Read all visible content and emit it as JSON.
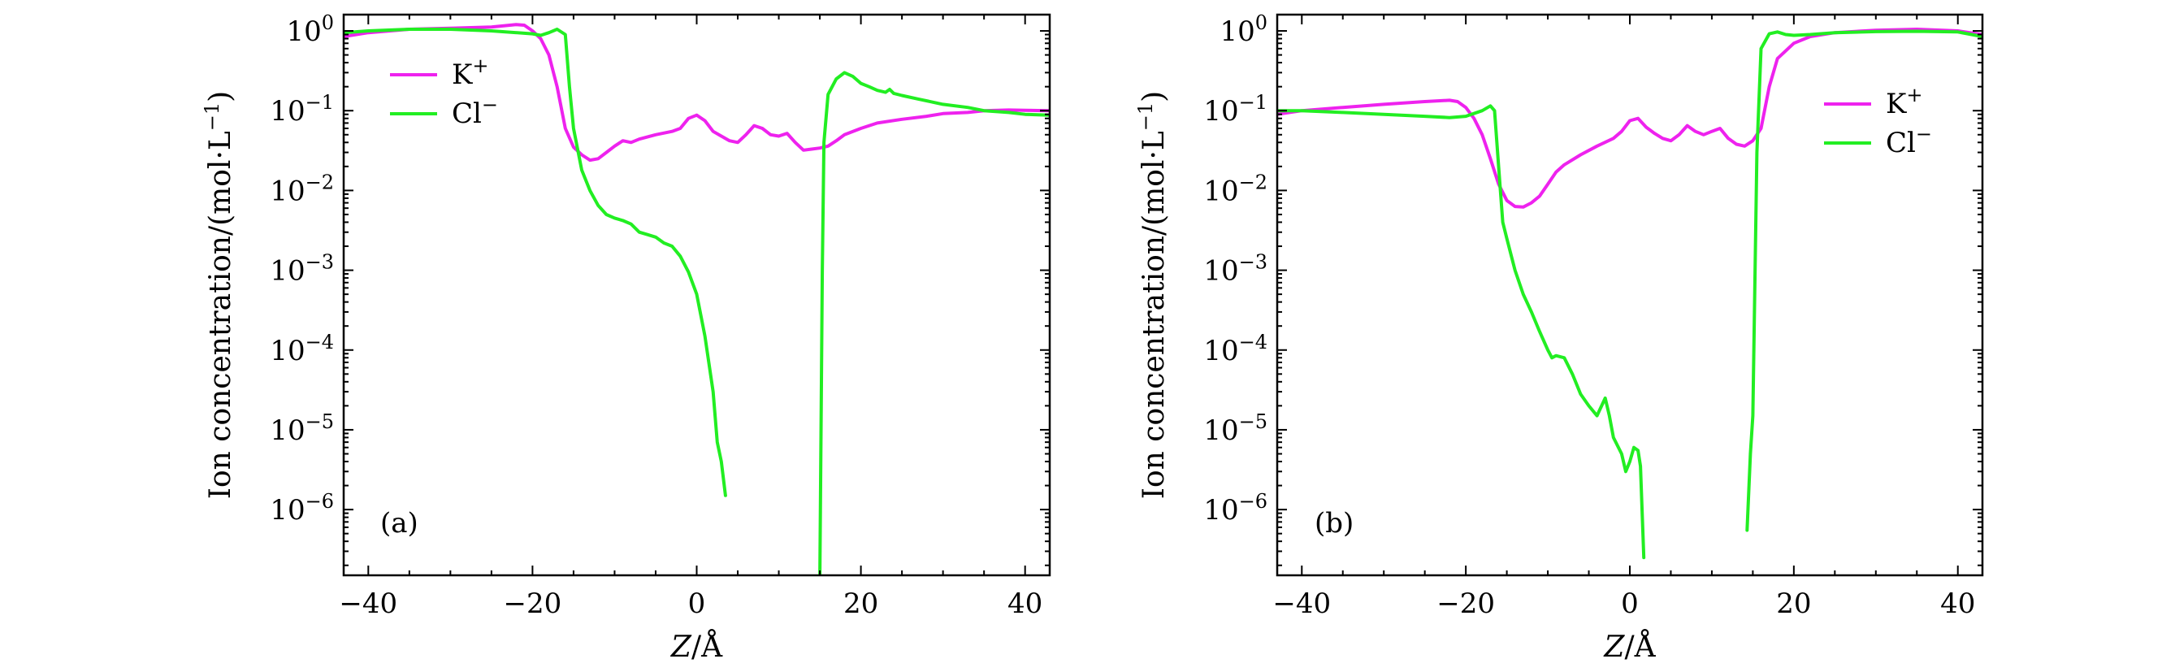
{
  "colors": {
    "k_plus": "#ee22ee",
    "cl_minus": "#22ee22"
  },
  "chart_data": [
    {
      "type": "line",
      "panel_label": "(a)",
      "xlabel_var": "Z",
      "xlabel_unit": "/Å",
      "ylabel": "Ion concentration/(mol·L",
      "ylabel_exp": "−1",
      "ylabel_close": ")",
      "xlim": [
        -43,
        43
      ],
      "ylim": [
        1.5e-07,
        1.6
      ],
      "yscale": "log",
      "xticks": [
        -40,
        -20,
        0,
        20,
        40
      ],
      "xtick_labels": [
        "−40",
        "−20",
        "0",
        "20",
        "40"
      ],
      "yticks": [
        1,
        0.1,
        0.01,
        0.001,
        0.0001,
        1e-05,
        1e-06
      ],
      "ytick_labels": [
        {
          "base": "10",
          "exp": "0"
        },
        {
          "base": "10",
          "exp": "−1"
        },
        {
          "base": "10",
          "exp": "−2"
        },
        {
          "base": "10",
          "exp": "−3"
        },
        {
          "base": "10",
          "exp": "−4"
        },
        {
          "base": "10",
          "exp": "−5"
        },
        {
          "base": "10",
          "exp": "−6"
        }
      ],
      "legend_position": "upper-left",
      "series": [
        {
          "name": "K",
          "name_sup": "+",
          "color_key": "k_plus",
          "points": [
            [
              -43,
              0.85
            ],
            [
              -40,
              0.95
            ],
            [
              -35,
              1.05
            ],
            [
              -30,
              1.08
            ],
            [
              -25,
              1.12
            ],
            [
              -22,
              1.2
            ],
            [
              -21,
              1.18
            ],
            [
              -20,
              1.0
            ],
            [
              -19,
              0.8
            ],
            [
              -18,
              0.5
            ],
            [
              -17,
              0.2
            ],
            [
              -16,
              0.06
            ],
            [
              -15,
              0.035
            ],
            [
              -14,
              0.028
            ],
            [
              -13,
              0.024
            ],
            [
              -12,
              0.025
            ],
            [
              -11,
              0.03
            ],
            [
              -10,
              0.036
            ],
            [
              -9,
              0.042
            ],
            [
              -8,
              0.04
            ],
            [
              -7,
              0.044
            ],
            [
              -5,
              0.05
            ],
            [
              -3,
              0.055
            ],
            [
              -2,
              0.06
            ],
            [
              -1,
              0.08
            ],
            [
              0,
              0.088
            ],
            [
              1,
              0.075
            ],
            [
              2,
              0.055
            ],
            [
              3,
              0.048
            ],
            [
              4,
              0.042
            ],
            [
              5,
              0.04
            ],
            [
              6,
              0.05
            ],
            [
              7,
              0.065
            ],
            [
              8,
              0.06
            ],
            [
              9,
              0.05
            ],
            [
              10,
              0.048
            ],
            [
              11,
              0.052
            ],
            [
              12,
              0.04
            ],
            [
              13,
              0.032
            ],
            [
              14,
              0.033
            ],
            [
              15,
              0.034
            ],
            [
              16,
              0.036
            ],
            [
              17,
              0.042
            ],
            [
              18,
              0.05
            ],
            [
              20,
              0.06
            ],
            [
              22,
              0.07
            ],
            [
              25,
              0.078
            ],
            [
              28,
              0.085
            ],
            [
              30,
              0.092
            ],
            [
              33,
              0.095
            ],
            [
              35,
              0.1
            ],
            [
              38,
              0.102
            ],
            [
              40,
              0.101
            ],
            [
              43,
              0.1
            ]
          ]
        },
        {
          "name": "Cl",
          "name_sup": "−",
          "color_key": "cl_minus",
          "points": [
            [
              -43,
              0.95
            ],
            [
              -40,
              1.0
            ],
            [
              -35,
              1.05
            ],
            [
              -30,
              1.05
            ],
            [
              -25,
              1.0
            ],
            [
              -20,
              0.92
            ],
            [
              -19,
              0.88
            ],
            [
              -18,
              0.95
            ],
            [
              -17,
              1.05
            ],
            [
              -16,
              0.9
            ],
            [
              -15.5,
              0.2
            ],
            [
              -15,
              0.06
            ],
            [
              -14,
              0.018
            ],
            [
              -13,
              0.01
            ],
            [
              -12,
              0.0065
            ],
            [
              -11,
              0.005
            ],
            [
              -10,
              0.0045
            ],
            [
              -9,
              0.0042
            ],
            [
              -8,
              0.0038
            ],
            [
              -7,
              0.003
            ],
            [
              -6,
              0.0028
            ],
            [
              -5,
              0.0026
            ],
            [
              -4,
              0.0022
            ],
            [
              -3,
              0.002
            ],
            [
              -2,
              0.0015
            ],
            [
              -1,
              0.00095
            ],
            [
              0,
              0.0005
            ],
            [
              1,
              0.00015
            ],
            [
              2,
              3e-05
            ],
            [
              2.5,
              7e-06
            ],
            [
              3,
              4e-06
            ],
            [
              3.5,
              1.5e-06
            ]
          ]
        },
        {
          "name": "",
          "name_sup": "",
          "color_key": "cl_minus",
          "points": [
            [
              15,
              1.5e-07
            ],
            [
              15.3,
              0.001
            ],
            [
              15.5,
              0.04
            ],
            [
              16,
              0.16
            ],
            [
              17,
              0.25
            ],
            [
              18,
              0.3
            ],
            [
              19,
              0.27
            ],
            [
              20,
              0.22
            ],
            [
              21,
              0.2
            ],
            [
              22,
              0.18
            ],
            [
              23,
              0.17
            ],
            [
              23.5,
              0.185
            ],
            [
              24,
              0.165
            ],
            [
              25,
              0.155
            ],
            [
              27,
              0.14
            ],
            [
              30,
              0.12
            ],
            [
              33,
              0.11
            ],
            [
              35,
              0.1
            ],
            [
              38,
              0.095
            ],
            [
              40,
              0.09
            ],
            [
              43,
              0.088
            ]
          ]
        }
      ]
    },
    {
      "type": "line",
      "panel_label": "(b)",
      "xlabel_var": "Z",
      "xlabel_unit": "/Å",
      "ylabel": "Ion concentration/(mol·L",
      "ylabel_exp": "−1",
      "ylabel_close": ")",
      "xlim": [
        -43,
        43
      ],
      "ylim": [
        1.5e-07,
        1.6
      ],
      "yscale": "log",
      "xticks": [
        -40,
        -20,
        0,
        20,
        40
      ],
      "xtick_labels": [
        "−40",
        "−20",
        "0",
        "20",
        "40"
      ],
      "yticks": [
        1,
        0.1,
        0.01,
        0.001,
        0.0001,
        1e-05,
        1e-06
      ],
      "ytick_labels": [
        {
          "base": "10",
          "exp": "0"
        },
        {
          "base": "10",
          "exp": "−1"
        },
        {
          "base": "10",
          "exp": "−2"
        },
        {
          "base": "10",
          "exp": "−3"
        },
        {
          "base": "10",
          "exp": "−4"
        },
        {
          "base": "10",
          "exp": "−5"
        },
        {
          "base": "10",
          "exp": "−6"
        }
      ],
      "legend_position": "upper-right",
      "series": [
        {
          "name": "K",
          "name_sup": "+",
          "color_key": "k_plus",
          "points": [
            [
              -43,
              0.09
            ],
            [
              -40,
              0.1
            ],
            [
              -35,
              0.11
            ],
            [
              -30,
              0.12
            ],
            [
              -25,
              0.13
            ],
            [
              -22,
              0.135
            ],
            [
              -21,
              0.13
            ],
            [
              -20,
              0.11
            ],
            [
              -19,
              0.08
            ],
            [
              -18,
              0.05
            ],
            [
              -17,
              0.025
            ],
            [
              -16,
              0.012
            ],
            [
              -15,
              0.0075
            ],
            [
              -14,
              0.0063
            ],
            [
              -13,
              0.0062
            ],
            [
              -12,
              0.007
            ],
            [
              -11,
              0.0085
            ],
            [
              -10,
              0.012
            ],
            [
              -9,
              0.017
            ],
            [
              -8,
              0.021
            ],
            [
              -6,
              0.028
            ],
            [
              -4,
              0.036
            ],
            [
              -2,
              0.045
            ],
            [
              -1,
              0.055
            ],
            [
              0,
              0.075
            ],
            [
              1,
              0.08
            ],
            [
              2,
              0.062
            ],
            [
              3,
              0.052
            ],
            [
              4,
              0.045
            ],
            [
              5,
              0.042
            ],
            [
              6,
              0.05
            ],
            [
              7,
              0.065
            ],
            [
              8,
              0.055
            ],
            [
              9,
              0.05
            ],
            [
              10,
              0.055
            ],
            [
              11,
              0.06
            ],
            [
              12,
              0.045
            ],
            [
              13,
              0.038
            ],
            [
              14,
              0.036
            ],
            [
              15,
              0.042
            ],
            [
              16,
              0.06
            ],
            [
              17,
              0.2
            ],
            [
              18,
              0.45
            ],
            [
              20,
              0.7
            ],
            [
              22,
              0.85
            ],
            [
              25,
              0.95
            ],
            [
              30,
              1.02
            ],
            [
              35,
              1.05
            ],
            [
              40,
              1.0
            ],
            [
              43,
              0.9
            ]
          ]
        },
        {
          "name": "Cl",
          "name_sup": "−",
          "color_key": "cl_minus",
          "points": [
            [
              -43,
              0.1
            ],
            [
              -40,
              0.1
            ],
            [
              -35,
              0.095
            ],
            [
              -30,
              0.09
            ],
            [
              -25,
              0.085
            ],
            [
              -22,
              0.082
            ],
            [
              -20,
              0.085
            ],
            [
              -18,
              0.1
            ],
            [
              -17,
              0.115
            ],
            [
              -16.5,
              0.1
            ],
            [
              -16,
              0.02
            ],
            [
              -15.5,
              0.004
            ],
            [
              -15,
              0.0025
            ],
            [
              -14,
              0.001
            ],
            [
              -13,
              0.0005
            ],
            [
              -12,
              0.0003
            ],
            [
              -11,
              0.00017
            ],
            [
              -10,
              0.0001
            ],
            [
              -9.5,
              8e-05
            ],
            [
              -9,
              8.5e-05
            ],
            [
              -8,
              8e-05
            ],
            [
              -7,
              5e-05
            ],
            [
              -6,
              2.8e-05
            ],
            [
              -5,
              2e-05
            ],
            [
              -4,
              1.5e-05
            ],
            [
              -3,
              2.5e-05
            ],
            [
              -2.5,
              1.5e-05
            ],
            [
              -2,
              8e-06
            ],
            [
              -1,
              5e-06
            ],
            [
              -0.5,
              3e-06
            ],
            [
              0,
              4e-06
            ],
            [
              0.5,
              6e-06
            ],
            [
              1,
              5.5e-06
            ],
            [
              1.3,
              3.5e-06
            ],
            [
              1.7,
              2.5e-07
            ]
          ]
        },
        {
          "name": "",
          "name_sup": "",
          "color_key": "cl_minus",
          "points": [
            [
              14.3,
              5.5e-07
            ],
            [
              14.7,
              5e-06
            ],
            [
              15,
              1.5e-05
            ],
            [
              15.5,
              0.03
            ],
            [
              16,
              0.6
            ],
            [
              17,
              0.92
            ],
            [
              18,
              0.97
            ],
            [
              19,
              0.9
            ],
            [
              20,
              0.88
            ],
            [
              22,
              0.9
            ],
            [
              25,
              0.95
            ],
            [
              30,
              0.98
            ],
            [
              35,
              0.99
            ],
            [
              40,
              0.97
            ],
            [
              43,
              0.85
            ]
          ]
        }
      ]
    }
  ]
}
